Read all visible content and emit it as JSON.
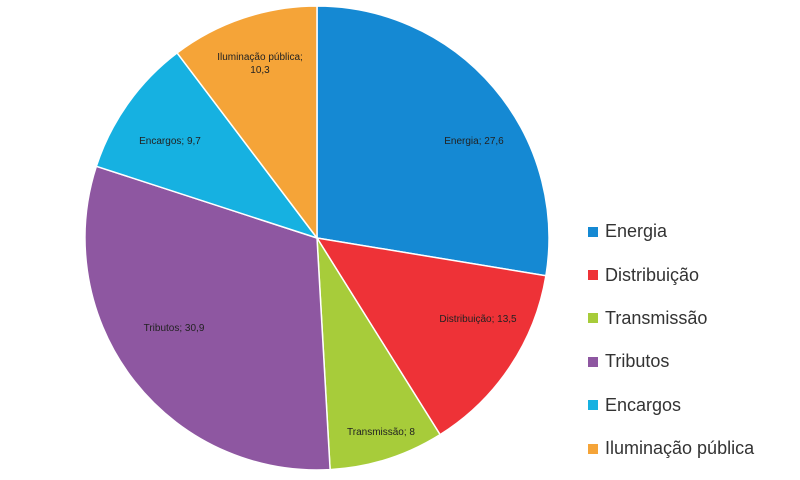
{
  "chart_data": {
    "type": "pie",
    "title": "",
    "legend_position": "right",
    "slices": [
      {
        "label": "Energia",
        "value": 27.6,
        "display": "Energia; 27,6",
        "color": "#1589d3"
      },
      {
        "label": "Distribuição",
        "value": 13.5,
        "display": "Distribuição; 13,5",
        "color": "#ee3237"
      },
      {
        "label": "Transmissão",
        "value": 8,
        "display": "Transmissão; 8",
        "color": "#a7cc3a"
      },
      {
        "label": "Tributos",
        "value": 30.9,
        "display": "Tributos; 30,9",
        "color": "#8e57a1"
      },
      {
        "label": "Encargos",
        "value": 9.7,
        "display": "Encargos; 9,7",
        "color": "#16b1e1"
      },
      {
        "label": "Iluminação pública",
        "value": 10.3,
        "display": "Iluminação pública; 10,3",
        "display_lines": [
          "Iluminação pública;",
          "10,3"
        ],
        "color": "#f5a438"
      }
    ]
  }
}
